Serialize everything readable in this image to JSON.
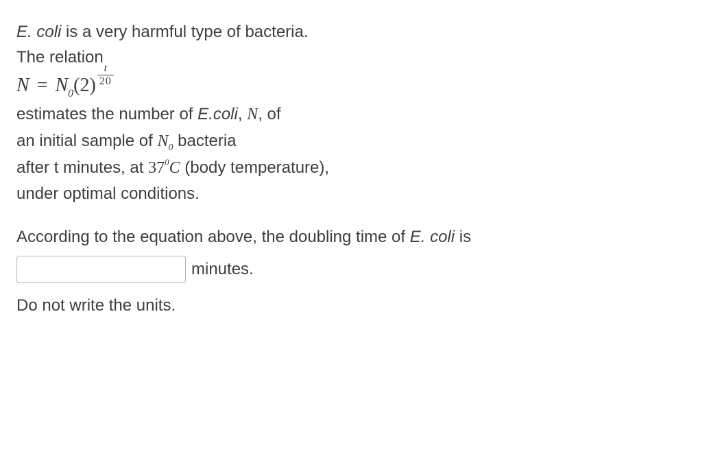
{
  "p1_line1_pre": "E. coli",
  "p1_line1_post": " is a very harmful type of bacteria.",
  "p1_line2": "The relation",
  "formula": {
    "nvar": "N",
    "eq": " = ",
    "n0_n": "N",
    "n0_sub": "0",
    "lparen": "(",
    "base": "2",
    "rparen": ")",
    "exp_num": "t",
    "exp_den": "20"
  },
  "p2_line1_pre": "estimates the number of ",
  "p2_line1_ecoli": "E.coli",
  "p2_line1_mid": ",  ",
  "p2_line1_N": "N",
  "p2_line1_post": ", of",
  "p2_line2_pre": "an initial sample of ",
  "p2_line2_N": "N",
  "p2_line2_sub": "0",
  "p2_line2_post": " bacteria",
  "p2_line3_pre": "after t minutes, at ",
  "deg": {
    "num": "37",
    "sup": "0",
    "c": "C"
  },
  "p2_line3_post": " (body temperature),",
  "p2_line4": "under optimal conditions.",
  "q_pre": "According to the equation above, the doubling time of ",
  "q_ecoli": "E. coli",
  "q_post": " is",
  "answer_value": "",
  "answer_unit": "minutes.",
  "note": "Do not write the units."
}
